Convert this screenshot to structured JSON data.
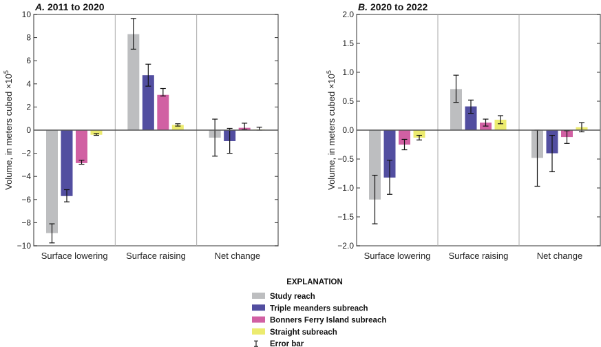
{
  "colors": {
    "study_reach": "#bdbec0",
    "triple_meanders": "#524ea0",
    "bonners_ferry": "#d160a3",
    "straight": "#eceb6f",
    "axis": "#777777",
    "divider": "#aaaaaa"
  },
  "legend": {
    "title": "EXPLANATION",
    "items": [
      {
        "label": "Study reach",
        "key": "study_reach"
      },
      {
        "label": "Triple meanders subreach",
        "key": "triple_meanders"
      },
      {
        "label": "Bonners Ferry Island subreach",
        "key": "bonners_ferry"
      },
      {
        "label": "Straight subreach",
        "key": "straight"
      },
      {
        "label": "Error bar",
        "key": "error"
      }
    ]
  },
  "chart_data": [
    {
      "type": "bar",
      "title_letter": "A.",
      "title": "2011 to 2020",
      "ylabel": "Volume, in meters cubed ×10",
      "ylabel_exp": "5",
      "ylim": [
        -10,
        10
      ],
      "yticks": [
        "10",
        "8",
        "6",
        "4",
        "2",
        "0",
        "−2",
        "−4",
        "−6",
        "−8",
        "−10"
      ],
      "ytick_values": [
        10,
        8,
        6,
        4,
        2,
        0,
        -2,
        -4,
        -6,
        -8,
        -10
      ],
      "categories": [
        "Surface lowering",
        "Surface raising",
        "Net change"
      ],
      "series": [
        {
          "name": "Study reach",
          "values": [
            -8.9,
            8.3,
            -0.65
          ],
          "err_low": [
            -9.75,
            7.0,
            -2.25
          ],
          "err_high": [
            -8.1,
            9.65,
            0.95
          ]
        },
        {
          "name": "Triple meanders subreach",
          "values": [
            -5.7,
            4.75,
            -0.95
          ],
          "err_low": [
            -6.2,
            3.8,
            -2.0
          ],
          "err_high": [
            -5.15,
            5.7,
            0.15
          ]
        },
        {
          "name": "Bonners Ferry Island subreach",
          "values": [
            -2.85,
            3.05,
            0.2
          ],
          "err_low": [
            -2.95,
            2.95,
            0.05
          ],
          "err_high": [
            -2.6,
            3.6,
            0.6
          ]
        },
        {
          "name": "Straight subreach",
          "values": [
            -0.4,
            0.45,
            0.05
          ],
          "err_low": [
            -0.45,
            0.35,
            0.0
          ],
          "err_high": [
            -0.3,
            0.55,
            0.25
          ]
        }
      ]
    },
    {
      "type": "bar",
      "title_letter": "B.",
      "title": "2020 to 2022",
      "ylabel": "Volume, in meters cubed ×10",
      "ylabel_exp": "5",
      "ylim": [
        -2,
        2
      ],
      "yticks": [
        "2.0",
        "1.5",
        "1.0",
        "0.5",
        "0.0",
        "−0.5",
        "−1.0",
        "−1.5",
        "−2.0"
      ],
      "ytick_values": [
        2,
        1.5,
        1,
        0.5,
        0,
        -0.5,
        -1,
        -1.5,
        -2
      ],
      "categories": [
        "Surface lowering",
        "Surface raising",
        "Net change"
      ],
      "series": [
        {
          "name": "Study reach",
          "values": [
            -1.2,
            0.71,
            -0.48
          ],
          "err_low": [
            -1.62,
            0.48,
            -0.97
          ],
          "err_high": [
            -0.78,
            0.95,
            0.0
          ]
        },
        {
          "name": "Triple meanders subreach",
          "values": [
            -0.82,
            0.41,
            -0.4
          ],
          "err_low": [
            -1.11,
            0.29,
            -0.72
          ],
          "err_high": [
            -0.52,
            0.52,
            -0.09
          ]
        },
        {
          "name": "Bonners Ferry Island subreach",
          "values": [
            -0.25,
            0.13,
            -0.12
          ],
          "err_low": [
            -0.34,
            0.07,
            -0.23
          ],
          "err_high": [
            -0.16,
            0.19,
            -0.01
          ]
        },
        {
          "name": "Straight subreach",
          "values": [
            -0.13,
            0.18,
            0.05
          ],
          "err_low": [
            -0.17,
            0.11,
            -0.03
          ],
          "err_high": [
            -0.09,
            0.25,
            0.13
          ]
        }
      ]
    }
  ]
}
